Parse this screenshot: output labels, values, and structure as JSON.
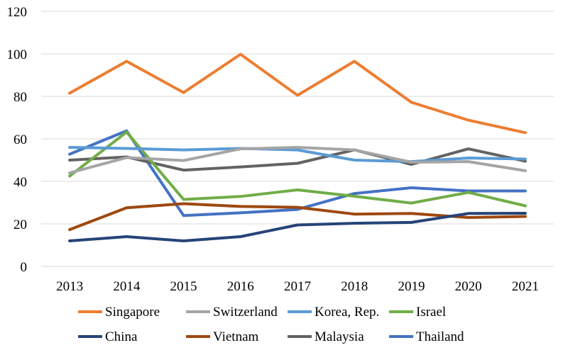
{
  "chart_data": {
    "type": "line",
    "title": "",
    "xlabel": "",
    "ylabel": "",
    "x": [
      "2013",
      "2014",
      "2015",
      "2016",
      "2017",
      "2018",
      "2019",
      "2020",
      "2021"
    ],
    "ylim": [
      0,
      120
    ],
    "yticks": [
      0,
      20,
      40,
      60,
      80,
      100,
      120
    ],
    "grid": true,
    "legend_position": "bottom",
    "series": [
      {
        "name": "Singapore",
        "color": "#ED7D31",
        "values": [
          81.5,
          96.5,
          81.8,
          99.8,
          80.5,
          96.5,
          77.2,
          68.8,
          62.9
        ]
      },
      {
        "name": "Switzerland",
        "color": "#A5A5A5",
        "values": [
          44.0,
          51.2,
          49.8,
          55.3,
          56.0,
          54.8,
          49.0,
          49.3,
          45.0
        ]
      },
      {
        "name": "Korea, Rep.",
        "color": "#5B9BD5",
        "values": [
          56.0,
          55.5,
          54.8,
          55.5,
          54.8,
          50.0,
          49.3,
          51.0,
          50.5
        ]
      },
      {
        "name": "Israel",
        "color": "#70AD47",
        "values": [
          42.5,
          63.2,
          31.5,
          32.9,
          36.0,
          33.0,
          29.8,
          34.8,
          28.5
        ]
      },
      {
        "name": "China",
        "color": "#264478",
        "values": [
          12.0,
          14.0,
          12.0,
          14.0,
          19.5,
          20.3,
          20.7,
          24.9,
          25.0
        ]
      },
      {
        "name": "Vietnam",
        "color": "#9E480E",
        "values": [
          17.3,
          27.6,
          29.5,
          28.2,
          27.8,
          24.6,
          24.9,
          23.0,
          23.5
        ]
      },
      {
        "name": "Malaysia",
        "color": "#636363",
        "values": [
          50.0,
          51.5,
          45.3,
          46.8,
          48.5,
          54.8,
          48.0,
          55.3,
          49.5
        ]
      },
      {
        "name": "Thailand",
        "color": "#4472C4",
        "values": [
          52.8,
          63.8,
          23.9,
          25.2,
          26.8,
          34.3,
          37.0,
          35.5,
          35.5
        ]
      }
    ]
  }
}
